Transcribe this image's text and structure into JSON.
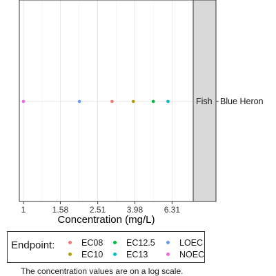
{
  "chart_data": {
    "type": "scatter",
    "x_scale": "log",
    "xlabel": "Concentration (mg/L)",
    "ylabel": "",
    "xlim": [
      0.95,
      8.2
    ],
    "x_ticks": [
      1,
      1.58,
      2.51,
      3.98,
      6.31
    ],
    "x_tick_labels": [
      "1",
      "1.58",
      "2.51",
      "3.98",
      "6.31"
    ],
    "grid": true,
    "category": "Blue Heron",
    "facet_label": "Fish",
    "series": [
      {
        "name": "EC08",
        "color": "#F8766D",
        "x": [
          3.0
        ],
        "y": [
          "Blue Heron"
        ]
      },
      {
        "name": "EC10",
        "color": "#B79F00",
        "x": [
          3.9
        ],
        "y": [
          "Blue Heron"
        ]
      },
      {
        "name": "EC12.5",
        "color": "#00BA38",
        "x": [
          5.0
        ],
        "y": [
          "Blue Heron"
        ]
      },
      {
        "name": "EC13",
        "color": "#00BFC4",
        "x": [
          6.0
        ],
        "y": [
          "Blue Heron"
        ]
      },
      {
        "name": "LOEC",
        "color": "#619CFF",
        "x": [
          2.0
        ],
        "y": [
          "Blue Heron"
        ]
      },
      {
        "name": "NOEC",
        "color": "#F564E3",
        "x": [
          1.0
        ],
        "y": [
          "Blue Heron"
        ]
      }
    ],
    "legend_title": "Endpoint:",
    "legend_position": "bottom",
    "caption": "The concentration values are on a log scale."
  }
}
